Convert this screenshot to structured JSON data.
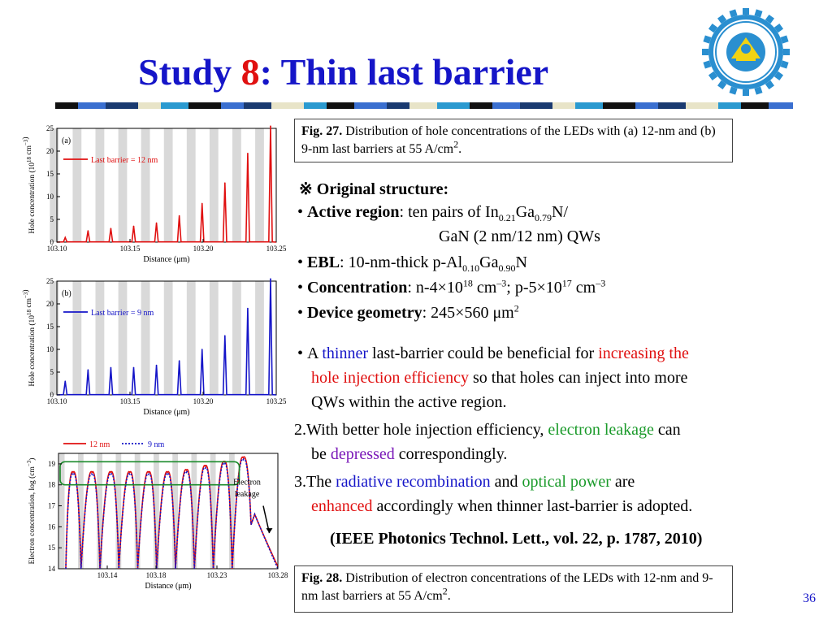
{
  "slide": {
    "title_prefix": "Study ",
    "title_number": "8",
    "title_suffix": ": Thin last barrier",
    "page_number": "36"
  },
  "fig27": {
    "label": "Fig. 27.",
    "caption": "Distribution of hole concentrations of the LEDs with (a) 12-nm and (b) 9-nm last barriers at 55 A/cm",
    "caption_sup": "2",
    "caption_end": "."
  },
  "fig28": {
    "label": "Fig. 28.",
    "caption": "Distribution of electron concentrations of the LEDs with 12-nm and 9-nm last barriers at 55 A/cm",
    "caption_sup": "2",
    "caption_end": "."
  },
  "original": {
    "heading": "※ Original structure:",
    "active_label": "Active region",
    "active_text_1": ": ten pairs of In",
    "active_sub_1": "0.21",
    "active_text_2": "Ga",
    "active_sub_2": "0.79",
    "active_text_3": "N/",
    "active_line2": "GaN (2 nm/12 nm) QWs",
    "ebl_label": "EBL",
    "ebl_text_1": ": 10-nm-thick p-Al",
    "ebl_sub_1": "0.10",
    "ebl_text_2": "Ga",
    "ebl_sub_2": "0.90",
    "ebl_text_3": "N",
    "conc_label": "Concentration",
    "conc_text_1": ": n-4×10",
    "conc_sup_1": "18",
    "conc_text_2": " cm",
    "conc_sup_2": "–3",
    "conc_text_3": "; p-5×10",
    "conc_sup_3": "17",
    "conc_text_4": " cm",
    "conc_sup_4": "–3",
    "geom_label": "Device geometry",
    "geom_text": ": 245×560 μm",
    "geom_sup": "2"
  },
  "points": {
    "p1_a": "A ",
    "p1_b": "thinner",
    "p1_c": " last-barrier could be beneficial for ",
    "p1_d": "increasing the",
    "p1_e": "hole injection efficiency",
    "p1_f": " so that holes can inject into more",
    "p1_g": "QWs within the active region.",
    "p2_num": "2.",
    "p2_a": "With better hole injection efficiency, ",
    "p2_b": "electron leakage",
    "p2_c": " can",
    "p2_d": "be ",
    "p2_e": "depressed",
    "p2_f": " correspondingly.",
    "p3_num": "3.",
    "p3_a": "The ",
    "p3_b": "radiative recombination",
    "p3_c": " and ",
    "p3_d": "optical power",
    "p3_e": " are",
    "p3_f": "enhanced",
    "p3_g": " accordingly when thinner last-barrier is adopted."
  },
  "reference": "(IEEE Photonics Technol. Lett., vol. 22, p. 1787, 2010)",
  "colors": {
    "title": "#1515c8",
    "accent_red": "#e01010",
    "accent_green": "#1a9a2a",
    "accent_purple": "#7a18b8",
    "series_12nm": "#e01010",
    "series_9nm": "#1515c8",
    "barrier_fill": "#d9d9d9"
  },
  "chart_data": [
    {
      "type": "line",
      "panel": "(a)",
      "xlabel": "Distance (μm)",
      "ylabel": "Hole concentration (10",
      "ylabel_sup": "18",
      "ylabel_tail": " cm",
      "ylabel_sup2": "−3",
      "ylabel_close": ")",
      "xlim": [
        103.1,
        103.25
      ],
      "ylim": [
        0,
        25
      ],
      "x_ticks": [
        "103.10",
        "103.15",
        "103.20",
        "103.25"
      ],
      "y_ticks": [
        "0",
        "5",
        "10",
        "15",
        "20",
        "25"
      ],
      "series": [
        {
          "name": "Last barrier = 12 nm",
          "color": "#e01010",
          "peaks_x": [
            103.1057,
            103.1213,
            103.1369,
            103.1525,
            103.1681,
            103.1837,
            103.1993,
            103.2149,
            103.2305,
            103.2461
          ],
          "peaks_y": [
            1.0,
            2.5,
            3.0,
            3.5,
            4.2,
            5.8,
            8.5,
            13.0,
            19.5,
            25.5
          ]
        }
      ]
    },
    {
      "type": "line",
      "panel": "(b)",
      "xlabel": "Distance (μm)",
      "ylabel": "Hole concentration (10",
      "ylabel_sup": "18",
      "ylabel_tail": " cm",
      "ylabel_sup2": "−3",
      "ylabel_close": ")",
      "xlim": [
        103.1,
        103.25
      ],
      "ylim": [
        0,
        25
      ],
      "x_ticks": [
        "103.10",
        "103.15",
        "103.20",
        "103.25"
      ],
      "y_ticks": [
        "0",
        "5",
        "10",
        "15",
        "20",
        "25"
      ],
      "series": [
        {
          "name": "Last barrier = 9 nm",
          "color": "#1515c8",
          "peaks_x": [
            103.1057,
            103.1213,
            103.1369,
            103.1525,
            103.1681,
            103.1837,
            103.1993,
            103.2149,
            103.2305,
            103.2461
          ],
          "peaks_y": [
            3.0,
            5.5,
            6.0,
            6.0,
            6.5,
            7.5,
            10.0,
            13.0,
            19.0,
            25.5
          ]
        }
      ]
    },
    {
      "type": "line",
      "xlabel": "Distance (μm)",
      "ylabel": "Electron concentration, log (cm",
      "ylabel_sup": "−3",
      "ylabel_close": ")",
      "xlim": [
        103.1,
        103.28
      ],
      "ylim": [
        14,
        19.5
      ],
      "y_scale": "log10 values",
      "x_ticks": [
        "103.14",
        "103.18",
        "103.23",
        "103.28"
      ],
      "y_ticks": [
        "14",
        "15",
        "16",
        "17",
        "18",
        "19"
      ],
      "annotation": "Electron\nleakage",
      "annotation_line1": "Electron",
      "annotation_line2": "leakage",
      "series": [
        {
          "name": "12 nm",
          "color": "#e01010",
          "style": "solid",
          "peaks_y": [
            18.6,
            18.6,
            18.6,
            18.6,
            18.6,
            18.6,
            18.7,
            18.9,
            19.1,
            19.3
          ],
          "leakage_end": 14.1
        },
        {
          "name": "9 nm",
          "color": "#1515c8",
          "style": "dotted",
          "peaks_y": [
            18.5,
            18.5,
            18.5,
            18.5,
            18.5,
            18.5,
            18.6,
            18.8,
            19.0,
            19.2
          ],
          "leakage_end": 14.0
        }
      ]
    }
  ]
}
